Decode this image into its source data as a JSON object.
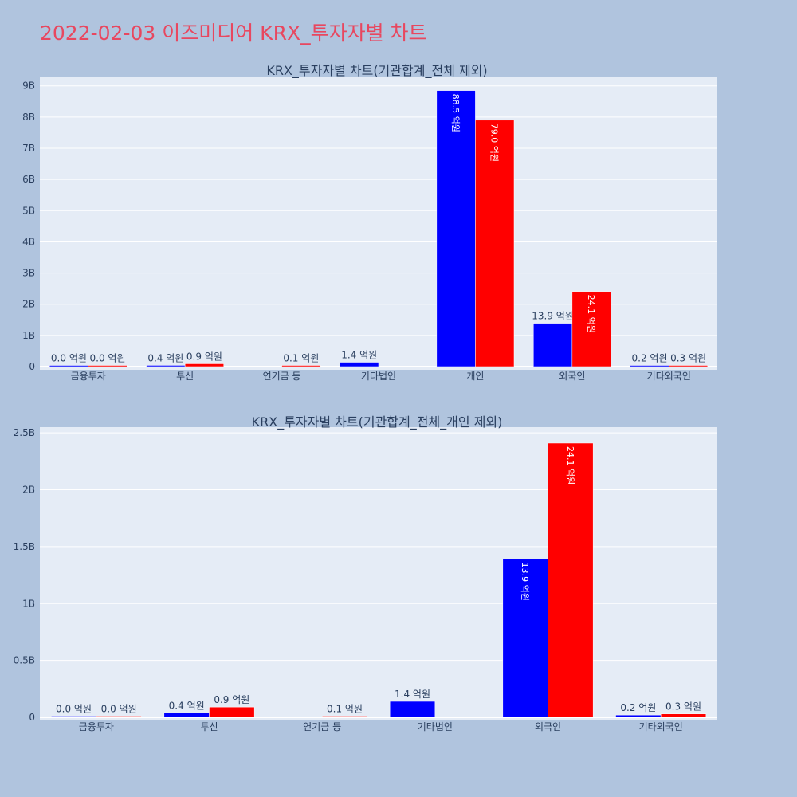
{
  "page": {
    "title": "2022-02-03 이즈미디어 KRX_투자자별 차트"
  },
  "colors": {
    "background": "#b0c4de",
    "plot_bg": "#e5ecf6",
    "series_a": "#0000ff",
    "series_b": "#ff0000",
    "title": "#e8475f"
  },
  "chart_data": [
    {
      "type": "bar",
      "title": "KRX_투자자별 차트(기관합계_전체 제외)",
      "categories": [
        "금융투자",
        "투신",
        "연기금 등",
        "기타법인",
        "개인",
        "외국인",
        "기타외국인"
      ],
      "series": [
        {
          "color": "#0000ff",
          "values": [
            0.0,
            0.04,
            null,
            0.14,
            8.85,
            1.39,
            0.02
          ],
          "labels": [
            "0.0 억원",
            "0.4 억원",
            null,
            "1.4 억원",
            "88.5 억원",
            "13.9 억원",
            "0.2 억원"
          ]
        },
        {
          "color": "#ff0000",
          "values": [
            0.0,
            0.09,
            0.01,
            null,
            7.9,
            2.41,
            0.03
          ],
          "labels": [
            "0.0 억원",
            "0.9 억원",
            "0.1 억원",
            null,
            "79.0 억원",
            "24.1 억원",
            "0.3 억원"
          ]
        }
      ],
      "yticks": [
        "0",
        "1B",
        "2B",
        "3B",
        "4B",
        "5B",
        "6B",
        "7B",
        "8B",
        "9B"
      ],
      "ylim": [
        0,
        9.3
      ],
      "grid": true
    },
    {
      "type": "bar",
      "title": "KRX_투자자별 차트(기관합계_전체_개인 제외)",
      "categories": [
        "금융투자",
        "투신",
        "연기금 등",
        "기타법인",
        "외국인",
        "기타외국인"
      ],
      "series": [
        {
          "color": "#0000ff",
          "values": [
            0.0,
            0.04,
            null,
            0.14,
            1.39,
            0.02
          ],
          "labels": [
            "0.0 억원",
            "0.4 억원",
            null,
            "1.4 억원",
            "13.9 억원",
            "0.2 억원"
          ]
        },
        {
          "color": "#ff0000",
          "values": [
            0.0,
            0.09,
            0.01,
            null,
            2.41,
            0.03
          ],
          "labels": [
            "0.0 억원",
            "0.9 억원",
            "0.1 억원",
            null,
            "24.1 억원",
            "0.3 억원"
          ]
        }
      ],
      "yticks": [
        "0",
        "0.5B",
        "1B",
        "1.5B",
        "2B",
        "2.5B"
      ],
      "ylim": [
        0,
        2.55
      ],
      "grid": true
    }
  ]
}
